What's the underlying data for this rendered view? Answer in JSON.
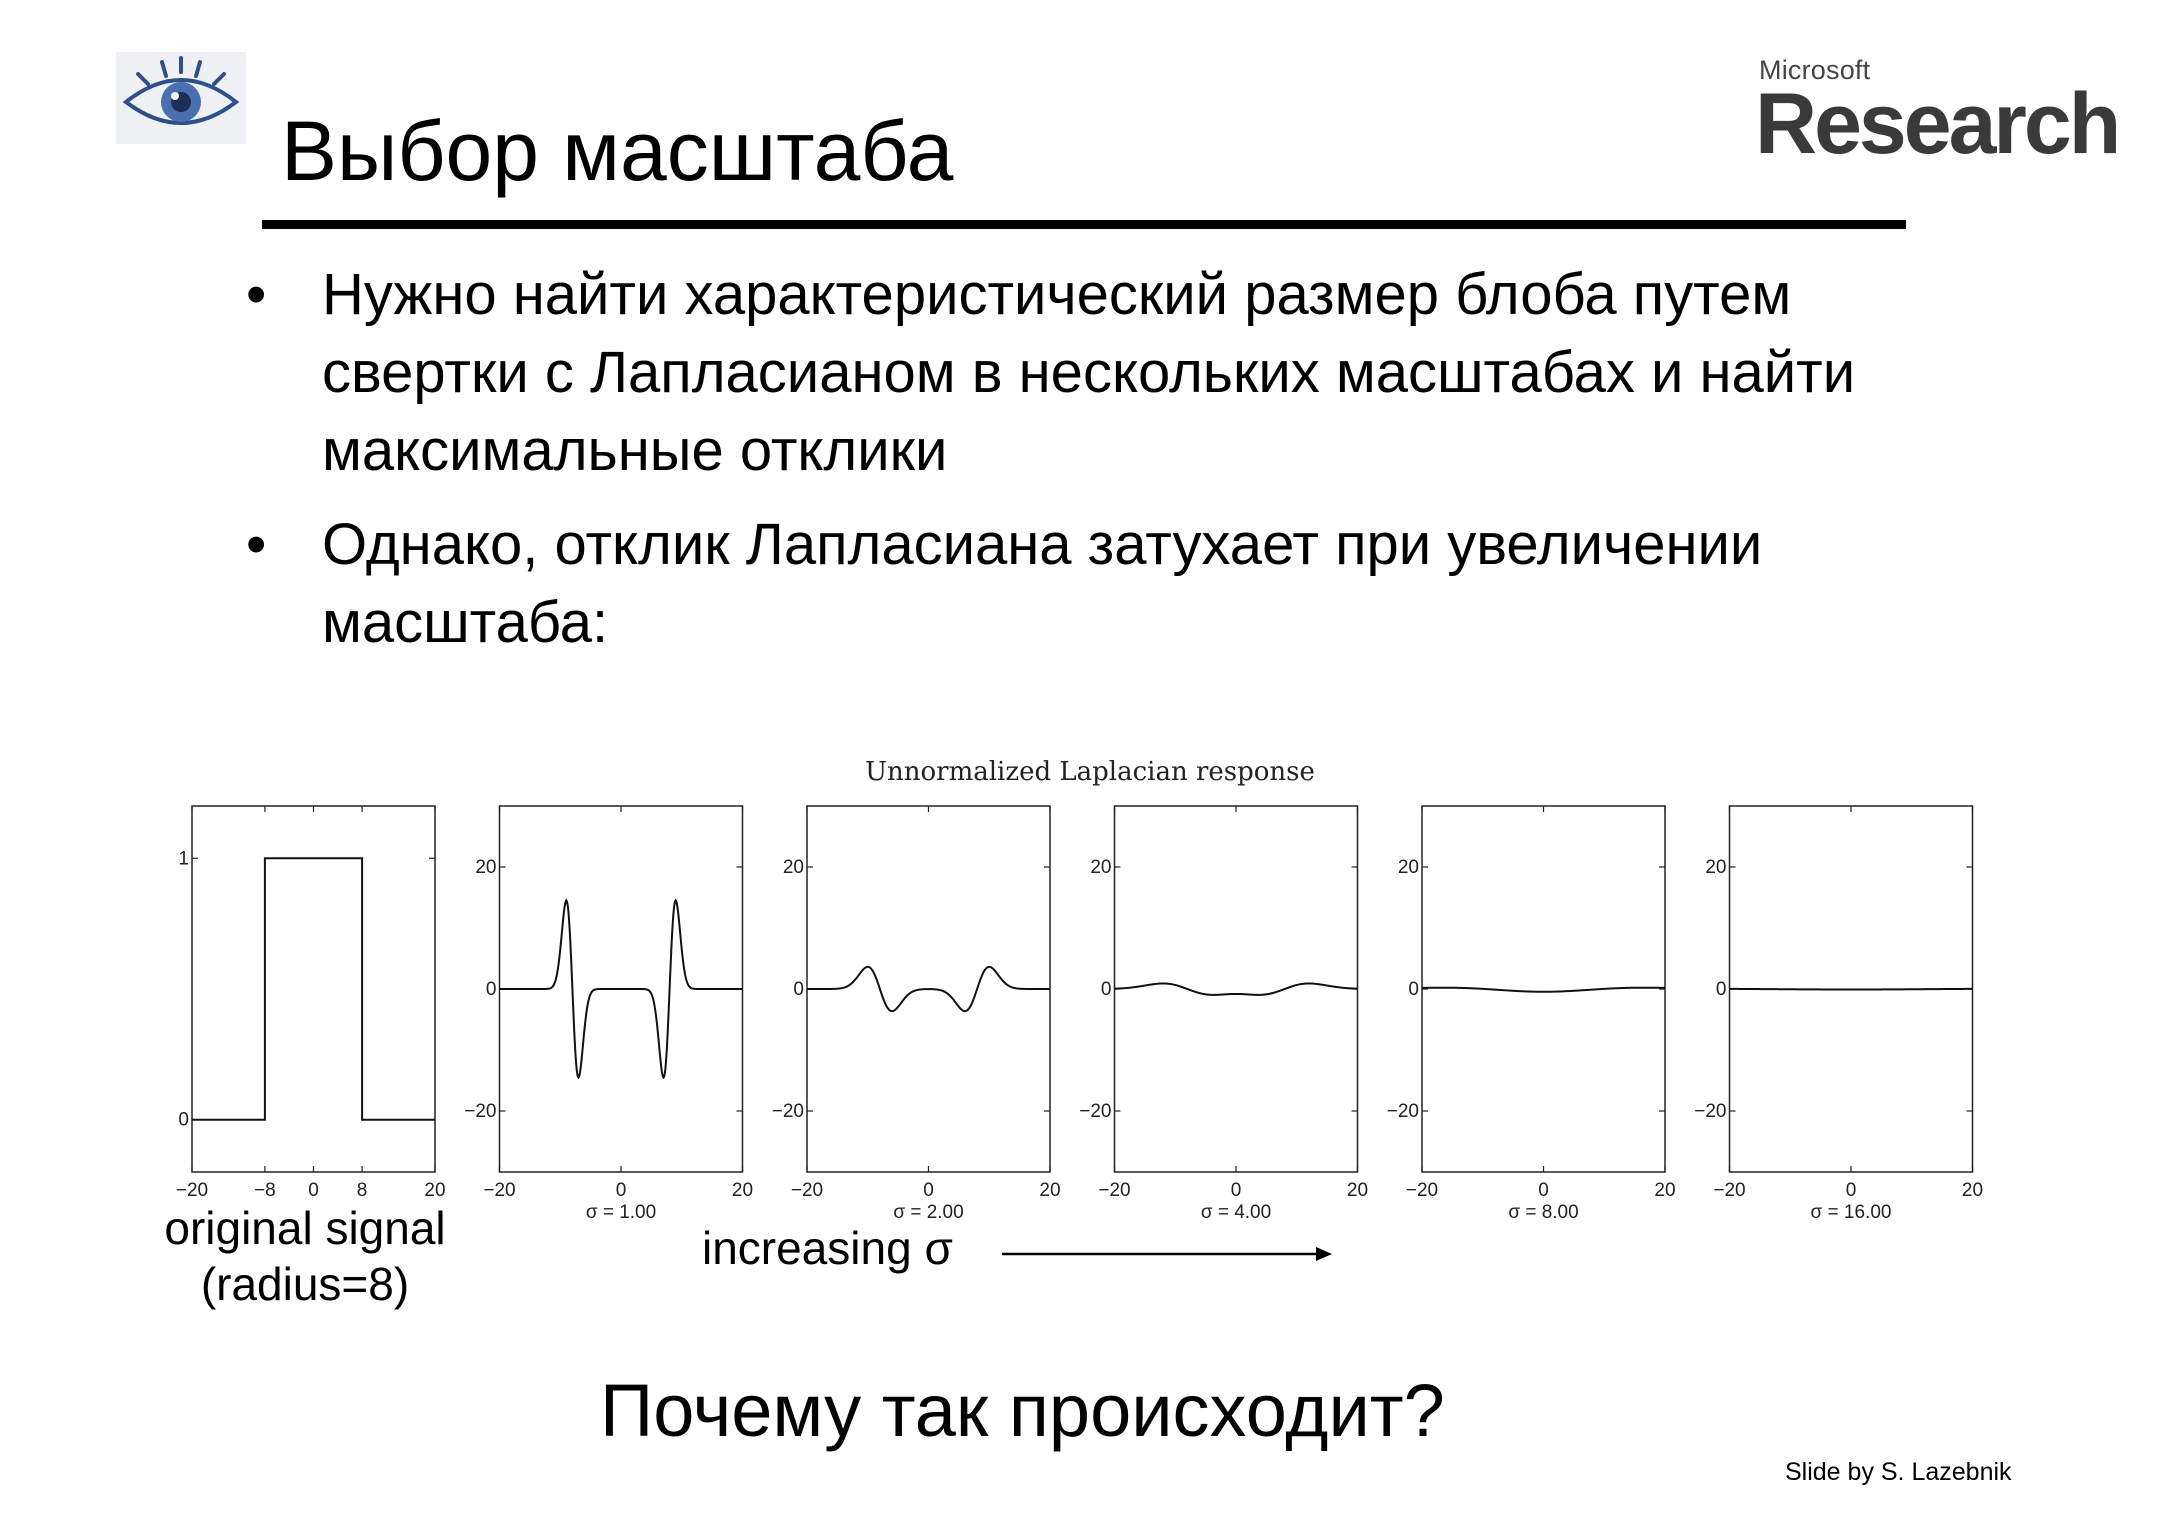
{
  "slide": {
    "title": "Выбор масштаба",
    "bullets": [
      {
        "bullet": "•",
        "text": "Нужно найти характеристический размер блоба путем свертки с Лапласианом в нескольких масштабах и найти максимальные отклики"
      },
      {
        "bullet": "•",
        "text": "Однако, отклик Лапласиана затухает при увеличении масштаба:"
      }
    ],
    "original_label": "original signal\n(radius=8)",
    "increasing_label": "increasing σ",
    "question": "Почему так происходит?",
    "credit": "Slide by S. Lazebnik",
    "logo_left": {
      "icon": "eye-icon"
    },
    "logo_right": {
      "small": "Microsoft",
      "big": "Research"
    }
  },
  "chart_data": {
    "type": "line",
    "title": "Unnormalized Laplacian response",
    "panels": [
      {
        "kind": "signal",
        "xlabel": "",
        "xlim": [
          -20,
          20
        ],
        "ylim": [
          -0.2,
          1.2
        ],
        "xticks": [
          -20,
          -8,
          0,
          8,
          20
        ],
        "xtick_labels": [
          "−20",
          "−8",
          "0",
          "8",
          "20"
        ],
        "yticks": [
          0,
          1
        ],
        "ytick_labels": [
          "0",
          "1"
        ],
        "x": [
          -20,
          -8,
          -8,
          8,
          8,
          20
        ],
        "y": [
          0,
          0,
          1,
          1,
          0,
          0
        ]
      },
      {
        "kind": "response",
        "sigma": 1,
        "xlabel": "σ = 1.00",
        "xlim": [
          -20,
          20
        ],
        "ylim": [
          -30,
          30
        ],
        "xticks": [
          -20,
          0,
          20
        ],
        "xtick_labels": [
          "−20",
          "0",
          "20"
        ],
        "yticks": [
          20,
          0,
          -20
        ],
        "ytick_labels": [
          "20",
          "0",
          "−20"
        ],
        "radius": 8,
        "scale": 60,
        "samples": 400
      },
      {
        "kind": "response",
        "sigma": 2,
        "xlabel": "σ = 2.00",
        "xlim": [
          -20,
          20
        ],
        "ylim": [
          -30,
          30
        ],
        "xticks": [
          -20,
          0,
          20
        ],
        "xtick_labels": [
          "−20",
          "0",
          "20"
        ],
        "yticks": [
          20,
          0,
          -20
        ],
        "ytick_labels": [
          "20",
          "0",
          "−20"
        ],
        "radius": 8,
        "scale": 60,
        "samples": 400
      },
      {
        "kind": "response",
        "sigma": 4,
        "xlabel": "σ = 4.00",
        "xlim": [
          -20,
          20
        ],
        "ylim": [
          -30,
          30
        ],
        "xticks": [
          -20,
          0,
          20
        ],
        "xtick_labels": [
          "−20",
          "0",
          "20"
        ],
        "yticks": [
          20,
          0,
          -20
        ],
        "ytick_labels": [
          "20",
          "0",
          "−20"
        ],
        "radius": 8,
        "scale": 60,
        "samples": 400
      },
      {
        "kind": "response",
        "sigma": 8,
        "xlabel": "σ = 8.00",
        "xlim": [
          -20,
          20
        ],
        "ylim": [
          -30,
          30
        ],
        "xticks": [
          -20,
          0,
          20
        ],
        "xtick_labels": [
          "−20",
          "0",
          "20"
        ],
        "yticks": [
          20,
          0,
          -20
        ],
        "ytick_labels": [
          "20",
          "0",
          "−20"
        ],
        "radius": 8,
        "scale": 60,
        "samples": 400
      },
      {
        "kind": "response",
        "sigma": 16,
        "xlabel": "σ = 16.00",
        "xlim": [
          -20,
          20
        ],
        "ylim": [
          -30,
          30
        ],
        "xticks": [
          -20,
          0,
          20
        ],
        "xtick_labels": [
          "−20",
          "0",
          "20"
        ],
        "yticks": [
          20,
          0,
          -20
        ],
        "ytick_labels": [
          "20",
          "0",
          "−20"
        ],
        "radius": 8,
        "scale": 60,
        "samples": 400
      }
    ]
  }
}
